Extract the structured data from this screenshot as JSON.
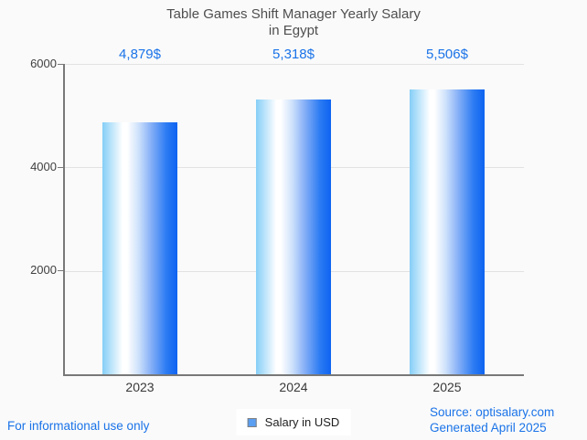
{
  "title": {
    "line1": "Table Games Shift Manager Yearly Salary",
    "line2": "in Egypt"
  },
  "chart_data": {
    "type": "bar",
    "title": "Table Games Shift Manager Yearly Salary in Egypt",
    "categories": [
      "2023",
      "2024",
      "2025"
    ],
    "series": [
      {
        "name": "Salary in USD",
        "values": [
          4879,
          5318,
          5506
        ]
      }
    ],
    "values": [
      4879,
      5318,
      5506
    ],
    "value_labels": [
      "4,879$",
      "5,318$",
      "5,506$"
    ],
    "ylim": [
      0,
      6000
    ],
    "yticks": [
      6000,
      4000,
      2000
    ],
    "ytick_labels": [
      "6000",
      "4000",
      "2000"
    ],
    "grid": true,
    "legend_position": "bottom-center",
    "xlabel": "",
    "ylabel": ""
  },
  "legend": {
    "label": "Salary in USD"
  },
  "footer": {
    "disclaimer": "For informational use only",
    "source": "Source: optisalary.com",
    "generated": "Generated April 2025"
  },
  "colors": {
    "accent_blue": "#1a73e8",
    "title_gray": "#4f4f4f",
    "axis_gray": "#787878",
    "grid_gray": "#e2e2e2",
    "background": "#fafafa",
    "bar_gradient_left": "#85cef7",
    "bar_gradient_right": "#0d63f1",
    "legend_swatch": "#5a9ff2"
  }
}
